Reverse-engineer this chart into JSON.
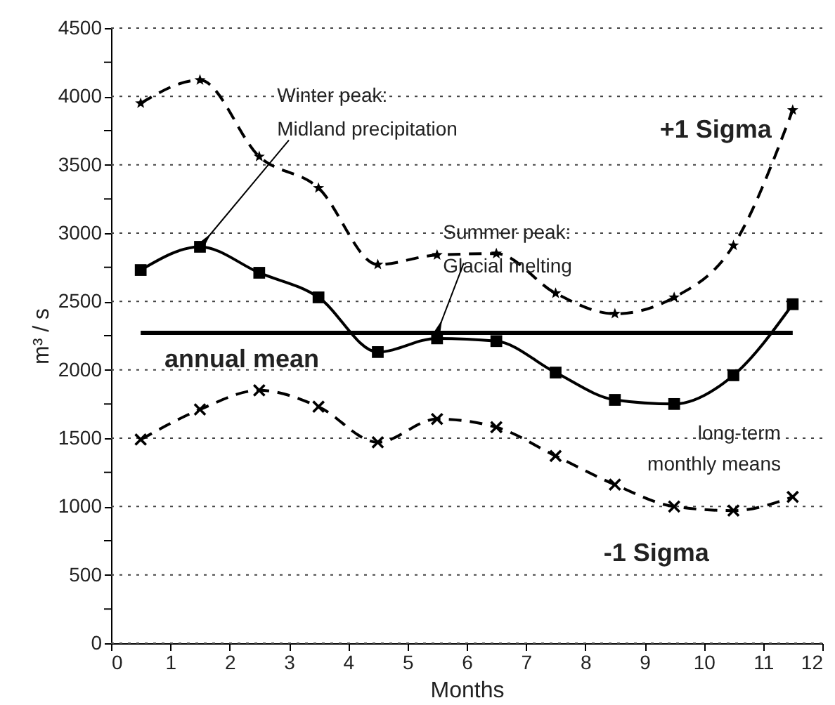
{
  "chart_data": {
    "type": "line",
    "xlabel": "Months",
    "ylabel": "m³ / s",
    "xlim": [
      0,
      12
    ],
    "xticks": [
      0,
      1,
      2,
      3,
      4,
      5,
      6,
      7,
      8,
      9,
      10,
      11,
      12
    ],
    "ylim": [
      0,
      4500
    ],
    "yticks": [
      0,
      {
        "value": 250,
        "label": null
      },
      500,
      {
        "value": 750,
        "label": null
      },
      1000,
      {
        "value": 1250,
        "label": null
      },
      1500,
      {
        "value": 1750,
        "label": null
      },
      2000,
      {
        "value": 2250,
        "label": null
      },
      2500,
      {
        "value": 2750,
        "label": null
      },
      3000,
      {
        "value": 3250,
        "label": null
      },
      3500,
      {
        "value": 3750,
        "label": null
      },
      4000,
      {
        "value": 4250,
        "label": null
      },
      4500
    ],
    "x": [
      0.5,
      1.5,
      2.5,
      3.5,
      4.5,
      5.5,
      6.5,
      7.5,
      8.5,
      9.5,
      10.5,
      11.5
    ],
    "grid": "y",
    "series": [
      {
        "name": "+1 Sigma",
        "color": "#000000",
        "marker": "star",
        "line_style": "dashed",
        "values": [
          3950,
          4120,
          3560,
          3330,
          2770,
          2840,
          2850,
          2560,
          2410,
          2530,
          2910,
          3900
        ]
      },
      {
        "name": "long-term monthly means",
        "color": "#000000",
        "marker": "square",
        "line_style": "solid",
        "values": [
          2730,
          2900,
          2710,
          2530,
          2130,
          2230,
          2210,
          1980,
          1780,
          1750,
          1960,
          2480
        ]
      },
      {
        "name": "-1 Sigma",
        "color": "#000000",
        "marker": "cross",
        "line_style": "dashed",
        "values": [
          1490,
          1710,
          1850,
          1730,
          1470,
          1640,
          1580,
          1370,
          1160,
          1000,
          970,
          1070
        ]
      },
      {
        "name": "annual mean",
        "color": "#000000",
        "marker": "none",
        "line_style": "solid",
        "x": [
          0.5,
          11.5
        ],
        "values": [
          2270,
          2270
        ]
      }
    ],
    "annotations": [
      {
        "text": "Winter peak:\nMidland precipitation",
        "x": 1.5,
        "y": 2900
      },
      {
        "text": "Summer peak:\nGlacial melting",
        "x": 5.5,
        "y": 2270
      }
    ]
  }
}
